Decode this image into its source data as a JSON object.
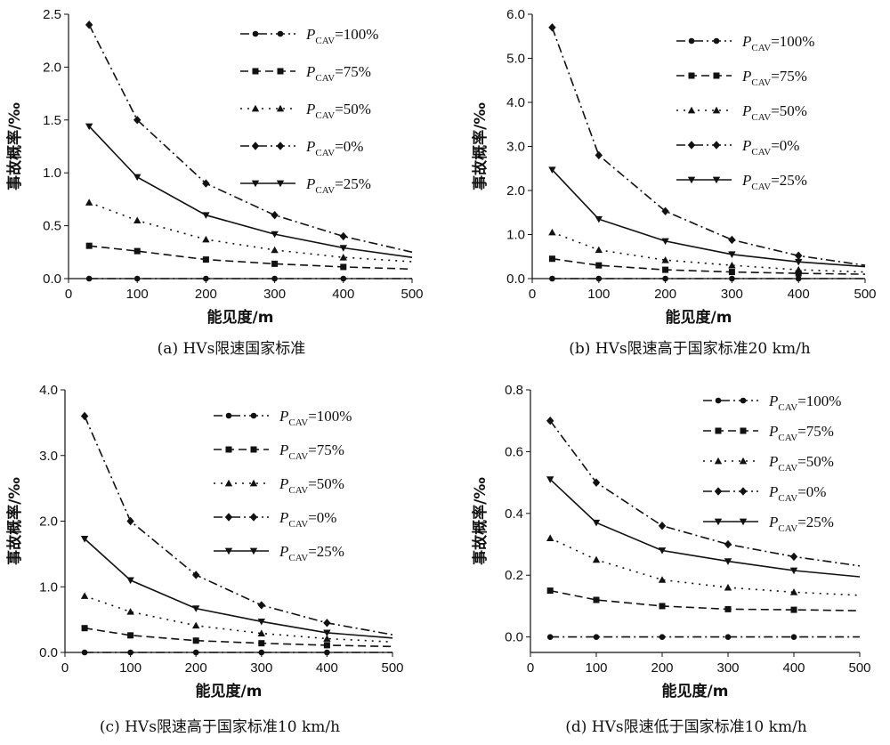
{
  "chart_data": [
    {
      "type": "line",
      "caption": "(a) HVs限速国家标准",
      "xlabel": "能见度/m",
      "ylabel": "事故概率/‰",
      "xlim": [
        0,
        500
      ],
      "ylim": [
        0,
        2.5
      ],
      "xticks": [
        0,
        100,
        200,
        300,
        400,
        500
      ],
      "xtick_labels": [
        "0",
        "100",
        "200",
        "300",
        "400",
        "500"
      ],
      "yticks": [
        0,
        0.5,
        1.0,
        1.5,
        2.0,
        2.5
      ],
      "ytick_labels": [
        "0.0",
        "0.5",
        "1.0",
        "1.5",
        "2.0",
        "2.5"
      ],
      "x": [
        30,
        100,
        200,
        300,
        400,
        500
      ],
      "series": [
        {
          "name": "P_CAV=100%",
          "label_main": "P",
          "label_sub": "CAV",
          "label_rest": "=100%",
          "values": [
            0,
            0,
            0,
            0,
            0,
            0
          ],
          "marker": "circle",
          "dash": "dashdot"
        },
        {
          "name": "P_CAV=75%",
          "label_main": "P",
          "label_sub": "CAV",
          "label_rest": "=75%",
          "values": [
            0.31,
            0.26,
            0.18,
            0.14,
            0.11,
            0.09
          ],
          "marker": "square",
          "dash": "dashed"
        },
        {
          "name": "P_CAV=50%",
          "label_main": "P",
          "label_sub": "CAV",
          "label_rest": "=50%",
          "values": [
            0.72,
            0.55,
            0.37,
            0.27,
            0.2,
            0.16
          ],
          "marker": "triangle",
          "dash": "dotted"
        },
        {
          "name": "P_CAV=0%",
          "label_main": "P",
          "label_sub": "CAV",
          "label_rest": "=0%",
          "values": [
            2.4,
            1.5,
            0.9,
            0.6,
            0.4,
            0.25
          ],
          "marker": "diamond",
          "dash": "dashdot"
        },
        {
          "name": "P_CAV=25%",
          "label_main": "P",
          "label_sub": "CAV",
          "label_rest": "=25%",
          "values": [
            1.44,
            0.96,
            0.6,
            0.42,
            0.29,
            0.2
          ],
          "marker": "triangle-down",
          "dash": "solid"
        }
      ]
    },
    {
      "type": "line",
      "caption": "(b) HVs限速高于国家标准20 km/h",
      "xlabel": "能见度/m",
      "ylabel": "事故概率/‰",
      "xlim": [
        0,
        500
      ],
      "ylim": [
        0,
        6.0
      ],
      "xticks": [
        0,
        100,
        200,
        300,
        400,
        500
      ],
      "xtick_labels": [
        "0",
        "100",
        "200",
        "300",
        "400",
        "500"
      ],
      "yticks": [
        0,
        1,
        2,
        3,
        4,
        5,
        6
      ],
      "ytick_labels": [
        "0.0",
        "1.0",
        "2.0",
        "3.0",
        "4.0",
        "5.0",
        "6.0"
      ],
      "x": [
        30,
        100,
        200,
        300,
        400,
        500
      ],
      "series": [
        {
          "name": "P_CAV=100%",
          "label_main": "P",
          "label_sub": "CAV",
          "label_rest": "=100%",
          "values": [
            0,
            0,
            0,
            0,
            0,
            0
          ],
          "marker": "circle",
          "dash": "dashdot"
        },
        {
          "name": "P_CAV=75%",
          "label_main": "P",
          "label_sub": "CAV",
          "label_rest": "=75%",
          "values": [
            0.45,
            0.3,
            0.2,
            0.15,
            0.12,
            0.1
          ],
          "marker": "square",
          "dash": "dashed"
        },
        {
          "name": "P_CAV=50%",
          "label_main": "P",
          "label_sub": "CAV",
          "label_rest": "=50%",
          "values": [
            1.05,
            0.65,
            0.42,
            0.3,
            0.2,
            0.15
          ],
          "marker": "triangle",
          "dash": "dotted"
        },
        {
          "name": "P_CAV=0%",
          "label_main": "P",
          "label_sub": "CAV",
          "label_rest": "=0%",
          "values": [
            5.7,
            2.8,
            1.53,
            0.88,
            0.52,
            0.3
          ],
          "marker": "diamond",
          "dash": "dashdot"
        },
        {
          "name": "P_CAV=25%",
          "label_main": "P",
          "label_sub": "CAV",
          "label_rest": "=25%",
          "values": [
            2.47,
            1.35,
            0.85,
            0.55,
            0.38,
            0.27
          ],
          "marker": "triangle-down",
          "dash": "solid"
        }
      ]
    },
    {
      "type": "line",
      "caption": "(c) HVs限速高于国家标准10 km/h",
      "xlabel": "能见度/m",
      "ylabel": "事故概率/‰",
      "xlim": [
        0,
        500
      ],
      "ylim": [
        0,
        4.0
      ],
      "xticks": [
        0,
        100,
        200,
        300,
        400,
        500
      ],
      "xtick_labels": [
        "0",
        "100",
        "200",
        "300",
        "400",
        "500"
      ],
      "yticks": [
        0,
        1,
        2,
        3,
        4
      ],
      "ytick_labels": [
        "0.0",
        "1.0",
        "2.0",
        "3.0",
        "4.0"
      ],
      "x": [
        30,
        100,
        200,
        300,
        400,
        500
      ],
      "series": [
        {
          "name": "P_CAV=100%",
          "label_main": "P",
          "label_sub": "CAV",
          "label_rest": "=100%",
          "values": [
            0,
            0,
            0,
            0,
            0,
            0
          ],
          "marker": "circle",
          "dash": "dashdot"
        },
        {
          "name": "P_CAV=75%",
          "label_main": "P",
          "label_sub": "CAV",
          "label_rest": "=75%",
          "values": [
            0.37,
            0.26,
            0.18,
            0.14,
            0.11,
            0.09
          ],
          "marker": "square",
          "dash": "dashed"
        },
        {
          "name": "P_CAV=50%",
          "label_main": "P",
          "label_sub": "CAV",
          "label_rest": "=50%",
          "values": [
            0.86,
            0.62,
            0.41,
            0.29,
            0.21,
            0.16
          ],
          "marker": "triangle",
          "dash": "dotted"
        },
        {
          "name": "P_CAV=0%",
          "label_main": "P",
          "label_sub": "CAV",
          "label_rest": "=0%",
          "values": [
            3.6,
            2.0,
            1.18,
            0.72,
            0.45,
            0.27
          ],
          "marker": "diamond",
          "dash": "dashdot"
        },
        {
          "name": "P_CAV=25%",
          "label_main": "P",
          "label_sub": "CAV",
          "label_rest": "=25%",
          "values": [
            1.73,
            1.1,
            0.67,
            0.47,
            0.3,
            0.22
          ],
          "marker": "triangle-down",
          "dash": "solid"
        }
      ]
    },
    {
      "type": "line",
      "caption": "(d) HVs限速低于国家标准10 km/h",
      "xlabel": "能见度/m",
      "ylabel": "事故概率/‰",
      "xlim": [
        0,
        500
      ],
      "ylim": [
        -0.05,
        0.8
      ],
      "xticks": [
        0,
        100,
        200,
        300,
        400,
        500
      ],
      "xtick_labels": [
        "0",
        "100",
        "200",
        "300",
        "400",
        "500"
      ],
      "yticks": [
        0,
        0.2,
        0.4,
        0.6,
        0.8
      ],
      "ytick_labels": [
        "0.0",
        "0.2",
        "0.4",
        "0.6",
        "0.8"
      ],
      "x": [
        30,
        100,
        200,
        300,
        400,
        500
      ],
      "series": [
        {
          "name": "P_CAV=100%",
          "label_main": "P",
          "label_sub": "CAV",
          "label_rest": "=100%",
          "values": [
            0,
            0,
            0,
            0,
            0,
            0
          ],
          "marker": "circle",
          "dash": "dashdot"
        },
        {
          "name": "P_CAV=75%",
          "label_main": "P",
          "label_sub": "CAV",
          "label_rest": "=75%",
          "values": [
            0.15,
            0.12,
            0.1,
            0.09,
            0.088,
            0.085
          ],
          "marker": "square",
          "dash": "dashed"
        },
        {
          "name": "P_CAV=50%",
          "label_main": "P",
          "label_sub": "CAV",
          "label_rest": "=50%",
          "values": [
            0.32,
            0.25,
            0.185,
            0.16,
            0.145,
            0.135
          ],
          "marker": "triangle",
          "dash": "dotted"
        },
        {
          "name": "P_CAV=0%",
          "label_main": "P",
          "label_sub": "CAV",
          "label_rest": "=0%",
          "values": [
            0.7,
            0.5,
            0.36,
            0.3,
            0.26,
            0.23
          ],
          "marker": "diamond",
          "dash": "dashdot"
        },
        {
          "name": "P_CAV=25%",
          "label_main": "P",
          "label_sub": "CAV",
          "label_rest": "=25%",
          "values": [
            0.51,
            0.37,
            0.28,
            0.245,
            0.215,
            0.195
          ],
          "marker": "triangle-down",
          "dash": "solid"
        }
      ]
    }
  ]
}
